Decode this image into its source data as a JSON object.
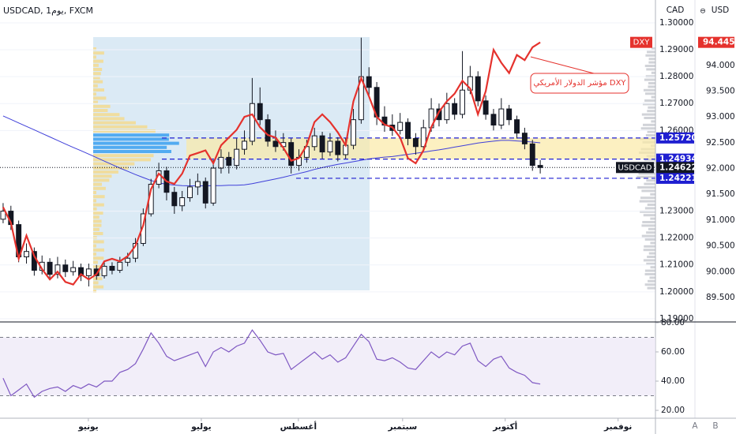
{
  "chart_data": {
    "type": "candlestick",
    "title": "USDCAD, 1يوم, FXCM",
    "price_axis_label": "CAD",
    "dxy_axis_label": "USD",
    "annotation": "مؤشر الدولار الأمريكي DXY",
    "up_color": "#ffffff",
    "down_color": "#131722",
    "candles": [
      [
        1.227,
        1.233,
        1.2255,
        1.23
      ],
      [
        1.23,
        1.232,
        1.223,
        1.225
      ],
      [
        1.225,
        1.2265,
        1.211,
        1.213
      ],
      [
        1.213,
        1.218,
        1.2105,
        1.215
      ],
      [
        1.215,
        1.2165,
        1.206,
        1.208
      ],
      [
        1.208,
        1.2135,
        1.2065,
        1.211
      ],
      [
        1.211,
        1.2125,
        1.2045,
        1.2065
      ],
      [
        1.2065,
        1.213,
        1.205,
        1.21
      ],
      [
        1.21,
        1.212,
        1.2055,
        1.2075
      ],
      [
        1.2075,
        1.2115,
        1.206,
        1.209
      ],
      [
        1.209,
        1.2105,
        1.204,
        1.206
      ],
      [
        1.206,
        1.2105,
        1.202,
        1.2085
      ],
      [
        1.2085,
        1.21,
        1.2045,
        1.206
      ],
      [
        1.206,
        1.2115,
        1.205,
        1.2095
      ],
      [
        1.2095,
        1.211,
        1.2065,
        1.208
      ],
      [
        1.208,
        1.213,
        1.207,
        1.211
      ],
      [
        1.211,
        1.2145,
        1.2095,
        1.2125
      ],
      [
        1.2125,
        1.22,
        1.211,
        1.218
      ],
      [
        1.218,
        1.231,
        1.217,
        1.229
      ],
      [
        1.229,
        1.242,
        1.228,
        1.24
      ],
      [
        1.24,
        1.248,
        1.2385,
        1.245
      ],
      [
        1.245,
        1.2465,
        1.234,
        1.237
      ],
      [
        1.237,
        1.239,
        1.229,
        1.232
      ],
      [
        1.232,
        1.2375,
        1.23,
        1.235
      ],
      [
        1.235,
        1.242,
        1.2335,
        1.239
      ],
      [
        1.239,
        1.244,
        1.236,
        1.241
      ],
      [
        1.241,
        1.2425,
        1.231,
        1.233
      ],
      [
        1.233,
        1.249,
        1.232,
        1.246
      ],
      [
        1.246,
        1.253,
        1.244,
        1.25
      ],
      [
        1.25,
        1.252,
        1.244,
        1.247
      ],
      [
        1.247,
        1.257,
        1.2455,
        1.253
      ],
      [
        1.253,
        1.26,
        1.251,
        1.256
      ],
      [
        1.256,
        1.2795,
        1.2545,
        1.27
      ],
      [
        1.27,
        1.276,
        1.262,
        1.264
      ],
      [
        1.264,
        1.266,
        1.254,
        1.256
      ],
      [
        1.256,
        1.26,
        1.252,
        1.254
      ],
      [
        1.254,
        1.259,
        1.2525,
        1.2555
      ],
      [
        1.2555,
        1.257,
        1.244,
        1.247
      ],
      [
        1.247,
        1.253,
        1.245,
        1.25
      ],
      [
        1.25,
        1.2565,
        1.248,
        1.254
      ],
      [
        1.254,
        1.261,
        1.2525,
        1.258
      ],
      [
        1.258,
        1.2595,
        1.2495,
        1.252
      ],
      [
        1.252,
        1.259,
        1.2505,
        1.256
      ],
      [
        1.256,
        1.2575,
        1.2485,
        1.251
      ],
      [
        1.251,
        1.257,
        1.2495,
        1.2545
      ],
      [
        1.2545,
        1.268,
        1.253,
        1.264
      ],
      [
        1.264,
        1.2945,
        1.2625,
        1.28
      ],
      [
        1.28,
        1.2835,
        1.273,
        1.276
      ],
      [
        1.276,
        1.278,
        1.262,
        1.265
      ],
      [
        1.265,
        1.269,
        1.2595,
        1.262
      ],
      [
        1.262,
        1.266,
        1.258,
        1.26
      ],
      [
        1.26,
        1.2665,
        1.2585,
        1.263
      ],
      [
        1.263,
        1.2645,
        1.2545,
        1.257
      ],
      [
        1.257,
        1.259,
        1.251,
        1.254
      ],
      [
        1.254,
        1.264,
        1.2525,
        1.261
      ],
      [
        1.261,
        1.272,
        1.2595,
        1.268
      ],
      [
        1.268,
        1.27,
        1.2615,
        1.264
      ],
      [
        1.264,
        1.274,
        1.2625,
        1.27
      ],
      [
        1.27,
        1.272,
        1.264,
        1.266
      ],
      [
        1.266,
        1.2895,
        1.2645,
        1.275
      ],
      [
        1.275,
        1.284,
        1.2735,
        1.28
      ],
      [
        1.28,
        1.282,
        1.269,
        1.271
      ],
      [
        1.271,
        1.273,
        1.264,
        1.266
      ],
      [
        1.266,
        1.268,
        1.26,
        1.262
      ],
      [
        1.262,
        1.272,
        1.2605,
        1.268
      ],
      [
        1.268,
        1.2695,
        1.262,
        1.264
      ],
      [
        1.264,
        1.2655,
        1.257,
        1.259
      ],
      [
        1.259,
        1.261,
        1.253,
        1.255
      ],
      [
        1.255,
        1.2565,
        1.245,
        1.247
      ],
      [
        1.247,
        1.249,
        1.244,
        1.24622
      ]
    ],
    "ma": {
      "color": "#3f3fd9",
      "values": [
        1.2654,
        1.2641,
        1.2628,
        1.2615,
        1.2602,
        1.2589,
        1.2576,
        1.2563,
        1.255,
        1.2537,
        1.2525,
        1.2512,
        1.2499,
        1.2486,
        1.2473,
        1.246,
        1.2448,
        1.2436,
        1.2425,
        1.2414,
        1.2405,
        1.24,
        1.2397,
        1.2395,
        1.2394,
        1.2394,
        1.2394,
        1.2395,
        1.2395,
        1.2396,
        1.2396,
        1.2398,
        1.2402,
        1.2408,
        1.2414,
        1.242,
        1.2426,
        1.2433,
        1.244,
        1.2447,
        1.2455,
        1.2462,
        1.2468,
        1.2474,
        1.2479,
        1.2484,
        1.2489,
        1.2494,
        1.2498,
        1.2501,
        1.2503,
        1.2507,
        1.2511,
        1.2515,
        1.2519,
        1.2524,
        1.2528,
        1.2533,
        1.2538,
        1.2543,
        1.2548,
        1.2553,
        1.2557,
        1.256,
        1.2563,
        1.2563,
        1.2561,
        1.2559,
        1.2557,
        1.2554
      ]
    },
    "dxy": {
      "name": "DXY",
      "color": "#e5322d",
      "axis": "y2",
      "values": [
        91.25,
        90.95,
        90.25,
        90.7,
        90.3,
        90.05,
        89.85,
        90.0,
        89.8,
        89.75,
        89.95,
        89.85,
        89.95,
        90.2,
        90.25,
        90.2,
        90.3,
        90.5,
        90.9,
        91.6,
        91.9,
        91.75,
        91.7,
        91.9,
        92.25,
        92.3,
        92.35,
        92.1,
        92.45,
        92.6,
        92.75,
        93.0,
        93.05,
        92.8,
        92.65,
        92.6,
        92.4,
        92.15,
        92.2,
        92.45,
        92.9,
        93.05,
        92.9,
        92.7,
        92.45,
        93.3,
        93.75,
        93.4,
        93.0,
        92.85,
        92.8,
        92.6,
        92.2,
        92.1,
        92.35,
        92.8,
        93.1,
        93.3,
        93.45,
        93.7,
        93.55,
        93.05,
        93.5,
        94.3,
        94.05,
        93.85,
        94.2,
        94.1,
        94.35,
        94.445
      ]
    },
    "dxy_last": {
      "name": "DXY",
      "value": 94.445,
      "label": "94.445"
    },
    "last_price": {
      "name": "USDCAD",
      "value": 1.24622,
      "label": "1.24622"
    },
    "levels": [
      {
        "value": 1.2572,
        "label": "1.25720"
      },
      {
        "value": 1.24934,
        "label": "1.24934"
      },
      {
        "value": 1.24221,
        "label": "1.24221"
      }
    ],
    "rsi": {
      "color": "#7e57c2",
      "values": [
        42,
        30,
        34,
        38,
        29,
        33,
        35,
        36,
        33,
        37,
        35,
        38,
        36,
        40,
        40,
        46,
        48,
        52,
        62,
        73,
        66,
        57,
        54,
        56,
        58,
        60,
        50,
        60,
        63,
        60,
        64,
        66,
        75,
        68,
        60,
        58,
        59,
        48,
        52,
        56,
        60,
        55,
        58,
        53,
        56,
        64,
        72,
        67,
        55,
        54,
        56,
        53,
        49,
        48,
        54,
        60,
        56,
        60,
        58,
        64,
        66,
        54,
        50,
        55,
        57,
        49,
        46,
        44,
        39,
        38
      ],
      "ylim": [
        15.7,
        80.5
      ],
      "bands": [
        30,
        70
      ],
      "yticks": [
        {
          "value": 80,
          "label": "80.00"
        },
        {
          "value": 60,
          "label": "60.00"
        },
        {
          "value": 40,
          "label": "40.00"
        },
        {
          "value": 20,
          "label": "20.00"
        }
      ]
    },
    "xlim": [
      -0.4,
      83.8
    ],
    "xticks": [
      {
        "value": 10.95,
        "label": "يونيو"
      },
      {
        "value": 25.46,
        "label": "يوليو"
      },
      {
        "value": 37.93,
        "label": "أغسطس"
      },
      {
        "value": 51.32,
        "label": "سبتمبر"
      },
      {
        "value": 64.5,
        "label": "أكتوبر"
      },
      {
        "value": 79.0,
        "label": "نوفمبر"
      }
    ],
    "ylim": [
      1.1888,
      1.3085
    ],
    "yticks": [
      {
        "value": 1.3,
        "label": "1.30000"
      },
      {
        "value": 1.29,
        "label": "1.29000"
      },
      {
        "value": 1.28,
        "label": "1.28000"
      },
      {
        "value": 1.27,
        "label": "1.27000"
      },
      {
        "value": 1.26,
        "label": "1.26000"
      },
      {
        "value": 1.23,
        "label": "1.23000"
      },
      {
        "value": 1.22,
        "label": "1.22000"
      },
      {
        "value": 1.21,
        "label": "1.21000"
      },
      {
        "value": 1.2,
        "label": "1.20000"
      },
      {
        "value": 1.19,
        "label": "1.19000"
      }
    ],
    "y2lim": [
      89.025,
      95.266
    ],
    "y2ticks": [
      {
        "value": 94.0,
        "label": "94.000"
      },
      {
        "value": 93.5,
        "label": "93.500"
      },
      {
        "value": 93.0,
        "label": "93.000"
      },
      {
        "value": 92.5,
        "label": "92.500"
      },
      {
        "value": 92.0,
        "label": "92.000"
      },
      {
        "value": 91.5,
        "label": "91.500"
      },
      {
        "value": 91.0,
        "label": "91.000"
      },
      {
        "value": 90.5,
        "label": "90.500"
      },
      {
        "value": 90.0,
        "label": "90.000"
      },
      {
        "value": 89.5,
        "label": "89.500"
      }
    ],
    "panel_labels": [
      "A",
      "B"
    ],
    "grid": true
  }
}
